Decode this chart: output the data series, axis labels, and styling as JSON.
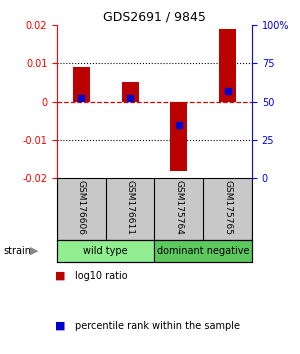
{
  "title": "GDS2691 / 9845",
  "samples": [
    "GSM176606",
    "GSM176611",
    "GSM175764",
    "GSM175765"
  ],
  "log10_ratios": [
    0.009,
    0.005,
    -0.018,
    0.019
  ],
  "percentile_ranks": [
    52,
    52,
    35,
    57
  ],
  "groups": [
    {
      "name": "wild type",
      "indices": [
        0,
        1
      ],
      "color": "#90EE90"
    },
    {
      "name": "dominant negative",
      "indices": [
        2,
        3
      ],
      "color": "#5DC85D"
    }
  ],
  "ylim_left": [
    -0.02,
    0.02
  ],
  "ylim_right": [
    0,
    100
  ],
  "yticks_left": [
    -0.02,
    -0.01,
    0,
    0.01,
    0.02
  ],
  "yticks_right": [
    0,
    25,
    50,
    75,
    100
  ],
  "bar_color": "#BB0000",
  "dot_color": "#0000CC",
  "zero_line_color": "#CC0000",
  "grid_color": "#000000",
  "label_log10": "log10 ratio",
  "label_percentile": "percentile rank within the sample",
  "group_label": "strain",
  "background_color": "#ffffff",
  "plot_bg": "#ffffff",
  "sample_bg": "#C8C8C8"
}
